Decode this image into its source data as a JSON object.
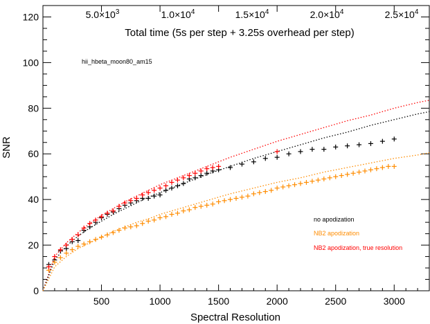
{
  "chart_data": {
    "type": "scatter",
    "xlabel": "Spectral Resolution",
    "ylabel": "SNR",
    "xlim": [
      0,
      3300
    ],
    "ylim": [
      0,
      125
    ],
    "x_ticks": [
      500,
      1000,
      1500,
      2000,
      2500,
      3000
    ],
    "y_ticks": [
      0,
      20,
      40,
      60,
      80,
      100,
      120
    ],
    "top_axis": {
      "label": "Total time (5s per step + 3.25s overhead per step)",
      "ticks": [
        {
          "mantissa": "5.0",
          "exponent": "3",
          "value": 5000
        },
        {
          "mantissa": "1.0",
          "exponent": "4",
          "value": 10000
        },
        {
          "mantissa": "1.5",
          "exponent": "4",
          "value": 15000
        },
        {
          "mantissa": "2.0",
          "exponent": "4",
          "value": 20000
        },
        {
          "mantissa": "2.5",
          "exponent": "4",
          "value": 25000
        }
      ]
    },
    "annotation": "hii_hbeta_moon80_am15",
    "legend": {
      "placement": "bottom-right",
      "items": [
        {
          "label": "no apodization",
          "color": "#000000"
        },
        {
          "label": "NB2 apodization",
          "color": "#ff8c00"
        },
        {
          "label": "NB2 apodization, true resolution",
          "color": "#ff0000"
        }
      ]
    },
    "grid": false,
    "series": [
      {
        "color": "#000000",
        "marker": "+",
        "x": [
          50,
          100,
          150,
          200,
          250,
          300,
          350,
          400,
          450,
          500,
          550,
          600,
          650,
          700,
          750,
          800,
          850,
          900,
          950,
          1000,
          1050,
          1100,
          1150,
          1200,
          1250,
          1300,
          1350,
          1400,
          1450,
          1500,
          1600,
          1700,
          1800,
          1900,
          2000,
          2100,
          2200,
          2300,
          2400,
          2500,
          2600,
          2700,
          2800,
          2900,
          3000
        ],
        "y": [
          11.5,
          13.5,
          17.5,
          18.5,
          21.5,
          22.0,
          26.5,
          28.0,
          30.0,
          32.0,
          33.5,
          34.5,
          36.0,
          37.5,
          38.5,
          39.5,
          40.5,
          40.5,
          41.5,
          42.0,
          44.0,
          45.0,
          46.0,
          47.0,
          49.0,
          49.5,
          50.5,
          51.5,
          52.5,
          53.0,
          54.0,
          55.5,
          56.5,
          58.0,
          58.5,
          60.0,
          61.0,
          62.0,
          62.0,
          63.0,
          63.5,
          64.0,
          64.5,
          65.5,
          66.5
        ]
      },
      {
        "color": "#ff8c00",
        "marker": "+",
        "x": [
          50,
          100,
          150,
          200,
          250,
          300,
          350,
          400,
          450,
          500,
          550,
          600,
          650,
          700,
          750,
          800,
          850,
          900,
          950,
          1000,
          1050,
          1100,
          1150,
          1200,
          1250,
          1300,
          1350,
          1400,
          1450,
          1500,
          1550,
          1600,
          1650,
          1700,
          1750,
          1800,
          1850,
          1900,
          1950,
          2000,
          2050,
          2100,
          2150,
          2200,
          2250,
          2300,
          2350,
          2400,
          2450,
          2500,
          2550,
          2600,
          2650,
          2700,
          2750,
          2800,
          2850,
          2900,
          2950,
          3000
        ],
        "y": [
          9.0,
          12.5,
          14.5,
          16.5,
          18.0,
          19.5,
          20.5,
          21.5,
          22.5,
          23.5,
          24.5,
          25.5,
          26.5,
          27.5,
          28.0,
          28.5,
          29.5,
          30.5,
          31.0,
          32.0,
          32.5,
          33.5,
          34.0,
          35.0,
          35.5,
          36.5,
          37.0,
          37.5,
          38.0,
          39.0,
          39.5,
          40.0,
          40.5,
          41.0,
          41.5,
          42.5,
          43.0,
          43.5,
          44.0,
          45.0,
          45.5,
          46.0,
          46.5,
          47.0,
          47.5,
          48.0,
          48.5,
          49.0,
          49.5,
          50.0,
          50.5,
          51.0,
          51.5,
          52.0,
          52.5,
          53.0,
          53.5,
          54.0,
          54.5,
          54.5
        ]
      },
      {
        "color": "#ff0000",
        "marker": "+",
        "x": [
          50,
          100,
          150,
          200,
          250,
          300,
          350,
          400,
          450,
          500,
          550,
          600,
          650,
          700,
          750,
          800,
          850,
          900,
          950,
          1000,
          1050,
          1100,
          1150,
          1200,
          1250,
          1300,
          1350,
          1400,
          1450,
          1500,
          2000
        ],
        "y": [
          10.5,
          15.0,
          18.0,
          20.0,
          22.5,
          24.5,
          27.5,
          29.5,
          31.0,
          32.5,
          34.0,
          35.0,
          37.0,
          38.5,
          39.5,
          40.5,
          42.0,
          43.0,
          44.0,
          45.0,
          46.0,
          47.5,
          48.5,
          49.5,
          50.5,
          51.5,
          52.5,
          53.5,
          54.0,
          54.5,
          61.0
        ]
      }
    ],
    "fit_curves": [
      {
        "color": "#ff0000",
        "style": "dotted",
        "x": [
          0,
          100,
          200,
          300,
          400,
          500,
          600,
          700,
          800,
          900,
          1000,
          1200,
          1400,
          1600,
          1800,
          2000,
          2200,
          2400,
          2600,
          2800,
          3000,
          3200,
          3300
        ],
        "y": [
          0,
          15.0,
          21.0,
          25.5,
          29.5,
          33.0,
          36.0,
          39.0,
          41.5,
          44.0,
          46.5,
          50.5,
          54.5,
          58.5,
          62.0,
          65.5,
          68.5,
          71.5,
          74.5,
          77.0,
          80.0,
          82.5,
          83.5
        ]
      },
      {
        "color": "#000000",
        "style": "dotted",
        "x": [
          0,
          100,
          200,
          300,
          400,
          500,
          600,
          700,
          800,
          900,
          1000,
          1200,
          1400,
          1600,
          1800,
          2000,
          2200,
          2400,
          2600,
          2800,
          3000,
          3200,
          3300
        ],
        "y": [
          0,
          13.5,
          19.5,
          24.0,
          27.5,
          30.5,
          33.5,
          36.0,
          38.5,
          41.0,
          43.0,
          47.0,
          51.0,
          54.5,
          58.0,
          61.0,
          64.0,
          67.0,
          69.5,
          72.5,
          75.0,
          77.5,
          78.5
        ]
      },
      {
        "color": "#ff8c00",
        "style": "dotted",
        "x": [
          0,
          100,
          200,
          300,
          400,
          500,
          600,
          700,
          800,
          900,
          1000,
          1200,
          1400,
          1600,
          1800,
          2000,
          2200,
          2400,
          2600,
          2800,
          3000,
          3200,
          3300
        ],
        "y": [
          0,
          10.5,
          15.0,
          18.5,
          21.0,
          23.5,
          26.0,
          28.0,
          30.0,
          31.5,
          33.5,
          36.5,
          39.5,
          42.5,
          45.0,
          47.5,
          49.5,
          52.0,
          54.0,
          56.0,
          58.0,
          59.5,
          60.5
        ]
      }
    ]
  }
}
